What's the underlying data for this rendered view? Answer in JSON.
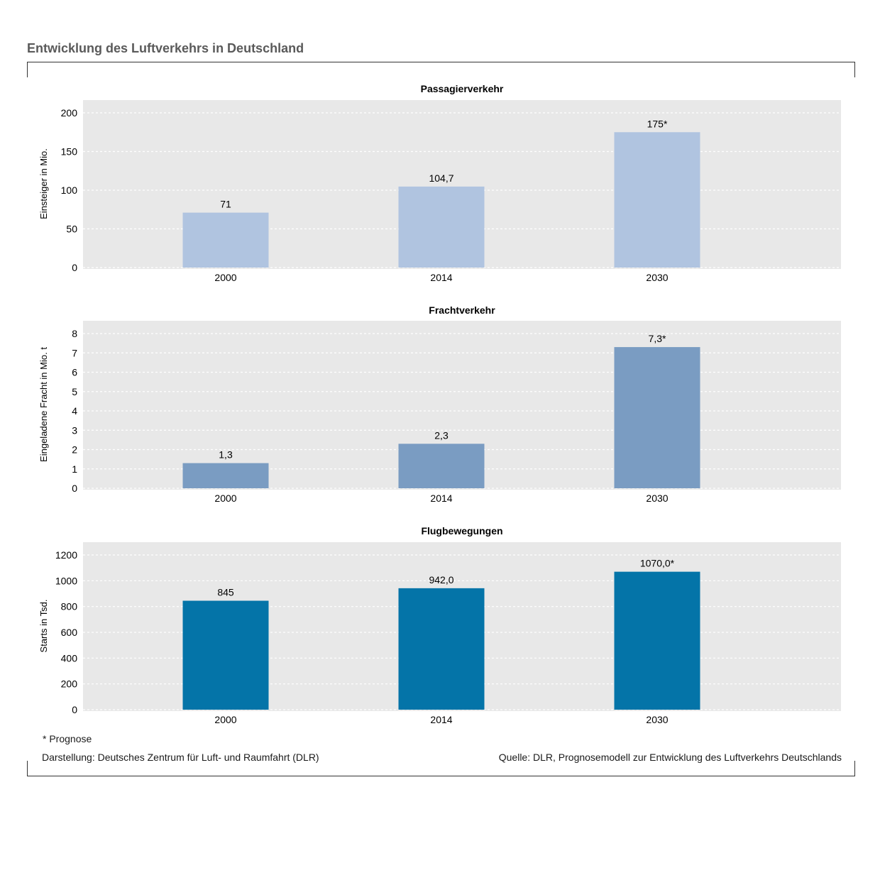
{
  "title": "Entwicklung des Luftverkehrs in Deutschland",
  "footnote": "* Prognose",
  "credit_left": "Darstellung: Deutsches Zentrum für Luft- und Raumfahrt (DLR)",
  "credit_right": "Quelle: DLR, Prognosemodell zur Entwicklung des Luftverkehrs Deutschlands",
  "chart_data": [
    {
      "type": "bar",
      "title": "Passagierverkehr",
      "ylabel": "Einsteiger in Mio.",
      "categories": [
        "2000",
        "2014",
        "2030"
      ],
      "values": [
        71,
        104.7,
        175
      ],
      "data_labels": [
        "71",
        "104,7",
        "175*"
      ],
      "ylim": [
        0,
        200
      ],
      "yticks": [
        0,
        50,
        100,
        150,
        200
      ],
      "color": "#b0c4e0",
      "grid": true
    },
    {
      "type": "bar",
      "title": "Frachtverkehr",
      "ylabel": "Eingeladene Fracht in Mio. t",
      "categories": [
        "2000",
        "2014",
        "2030"
      ],
      "values": [
        1.3,
        2.3,
        7.3
      ],
      "data_labels": [
        "1,3",
        "2,3",
        "7,3*"
      ],
      "ylim": [
        0,
        8
      ],
      "yticks": [
        0,
        1,
        2,
        3,
        4,
        5,
        6,
        7,
        8
      ],
      "color": "#7a9cc2",
      "grid": true
    },
    {
      "type": "bar",
      "title": "Flugbewegungen",
      "ylabel": "Starts in Tsd.",
      "categories": [
        "2000",
        "2014",
        "2030"
      ],
      "values": [
        845,
        942,
        1070
      ],
      "data_labels": [
        "845",
        "942,0",
        "1070,0*"
      ],
      "ylim": [
        0,
        1200
      ],
      "yticks": [
        0,
        200,
        400,
        600,
        800,
        1000,
        1200
      ],
      "color": "#0474a8",
      "grid": true
    }
  ]
}
